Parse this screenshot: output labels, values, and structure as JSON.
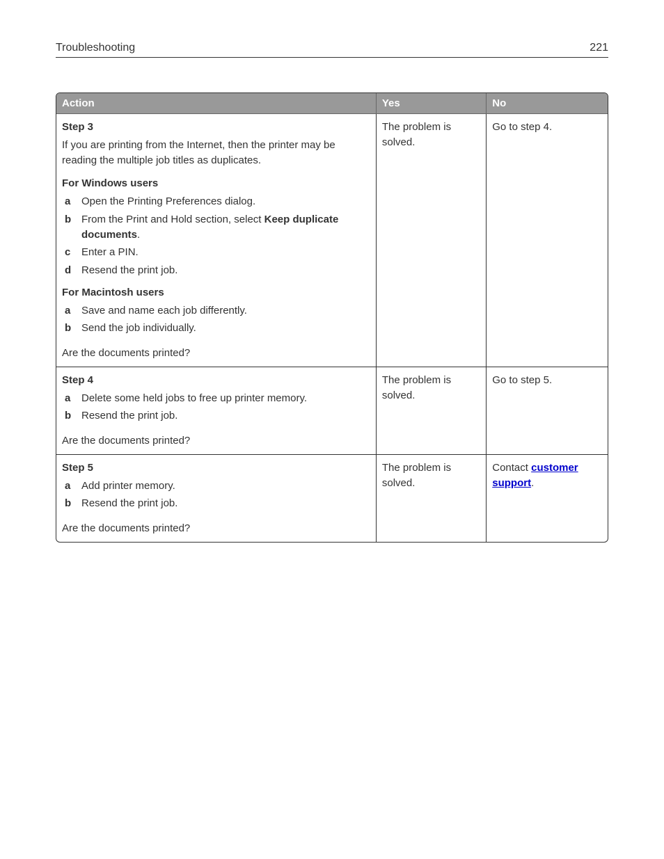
{
  "header": {
    "section_title": "Troubleshooting",
    "page_number": "221"
  },
  "table": {
    "headers": {
      "action": "Action",
      "yes": "Yes",
      "no": "No"
    },
    "rows": [
      {
        "step_title": "Step 3",
        "intro": "If you are printing from the Internet, then the printer may be reading the multiple job titles as duplicates.",
        "groups": [
          {
            "heading": "For Windows users",
            "items": [
              {
                "m": "a",
                "t": "Open the Printing Preferences dialog."
              },
              {
                "m": "b",
                "html": "From the Print and Hold section, select <b>Keep duplicate documents</b>."
              },
              {
                "m": "c",
                "t": "Enter a PIN."
              },
              {
                "m": "d",
                "t": "Resend the print job."
              }
            ]
          },
          {
            "heading": "For Macintosh users",
            "items": [
              {
                "m": "a",
                "t": "Save and name each job differently."
              },
              {
                "m": "b",
                "t": "Send the job individually."
              }
            ]
          }
        ],
        "question": "Are the documents printed?",
        "yes": "The problem is solved.",
        "no": "Go to step 4."
      },
      {
        "step_title": "Step 4",
        "groups": [
          {
            "items": [
              {
                "m": "a",
                "t": "Delete some held jobs to free up printer memory."
              },
              {
                "m": "b",
                "t": "Resend the print job."
              }
            ]
          }
        ],
        "question": "Are the documents printed?",
        "yes": "The problem is solved.",
        "no": "Go to step 5."
      },
      {
        "step_title": "Step 5",
        "groups": [
          {
            "items": [
              {
                "m": "a",
                "t": "Add printer memory."
              },
              {
                "m": "b",
                "t": "Resend the print job."
              }
            ]
          }
        ],
        "question": "Are the documents printed?",
        "yes": "The problem is solved.",
        "no_html": "Contact <span class=\"link\">customer support</span>."
      }
    ]
  }
}
